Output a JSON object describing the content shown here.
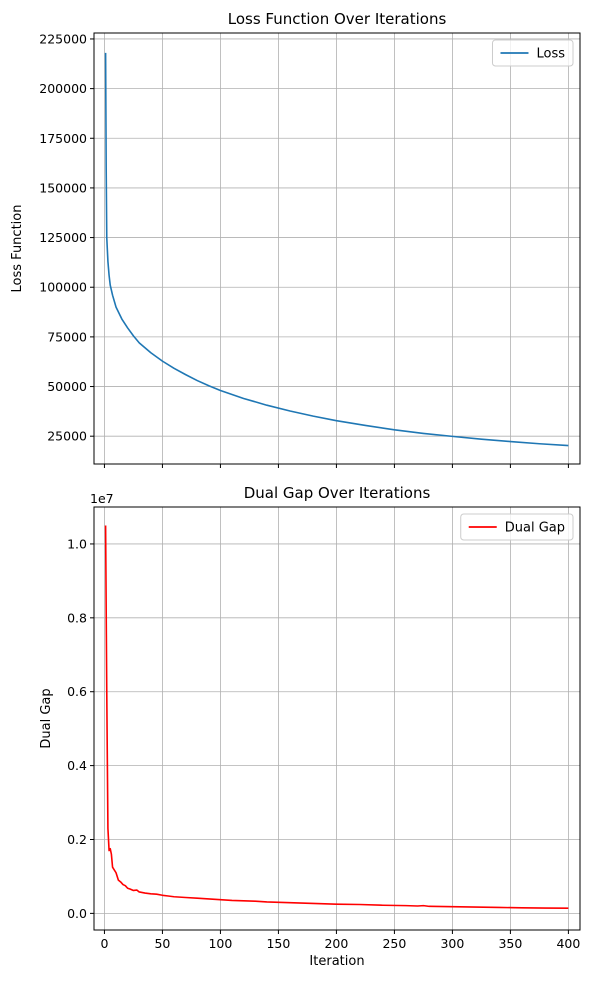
{
  "chart_data": [
    {
      "type": "line",
      "title": "Loss Function Over Iterations",
      "xlabel": "",
      "ylabel": "Loss Function",
      "xlim": [
        -9,
        410
      ],
      "ylim": [
        11000,
        228000
      ],
      "x_ticks": [
        0,
        50,
        100,
        150,
        200,
        250,
        300,
        350,
        400
      ],
      "x_tick_labels_visible": false,
      "y_ticks": [
        25000,
        50000,
        75000,
        100000,
        125000,
        150000,
        175000,
        200000,
        225000
      ],
      "y_tick_labels": [
        "25000",
        "50000",
        "75000",
        "100000",
        "125000",
        "150000",
        "175000",
        "200000",
        "225000"
      ],
      "grid": true,
      "legend": "top-right",
      "series": [
        {
          "name": "Loss",
          "color": "#1f77b4",
          "x": [
            1,
            1.5,
            2,
            3,
            4,
            5,
            7,
            10,
            15,
            20,
            25,
            30,
            40,
            50,
            60,
            70,
            80,
            90,
            100,
            120,
            140,
            160,
            180,
            200,
            225,
            250,
            275,
            300,
            325,
            350,
            375,
            400
          ],
          "y": [
            218000,
            160000,
            125000,
            113000,
            106000,
            101000,
            96000,
            90000,
            84000,
            79500,
            75500,
            72000,
            67000,
            62800,
            59200,
            56000,
            53000,
            50400,
            48000,
            44000,
            40600,
            37700,
            35100,
            32800,
            30400,
            28200,
            26400,
            24900,
            23500,
            22300,
            21200,
            20300
          ]
        }
      ]
    },
    {
      "type": "line",
      "title": "Dual Gap Over Iterations",
      "xlabel": "Iteration",
      "ylabel": "Dual Gap",
      "offset_text": "1e7",
      "xlim": [
        -9,
        410
      ],
      "ylim": [
        -0.045,
        1.1
      ],
      "x_ticks": [
        0,
        50,
        100,
        150,
        200,
        250,
        300,
        350,
        400
      ],
      "x_tick_labels": [
        "0",
        "50",
        "100",
        "150",
        "200",
        "250",
        "300",
        "350",
        "400"
      ],
      "y_ticks": [
        0.0,
        0.2,
        0.4,
        0.6,
        0.8,
        1.0
      ],
      "y_tick_labels": [
        "0.0",
        "0.2",
        "0.4",
        "0.6",
        "0.8",
        "1.0"
      ],
      "grid": true,
      "legend": "top-right",
      "series": [
        {
          "name": "Dual Gap",
          "color": "#ff0000",
          "x": [
            1,
            2,
            3,
            4,
            5,
            6,
            7,
            8,
            10,
            12,
            14,
            16,
            18,
            20,
            22,
            25,
            28,
            30,
            35,
            40,
            45,
            50,
            55,
            60,
            70,
            80,
            90,
            100,
            110,
            120,
            130,
            140,
            150,
            160,
            170,
            180,
            190,
            200,
            220,
            240,
            260,
            270,
            275,
            280,
            300,
            320,
            340,
            360,
            380,
            400
          ],
          "y": [
            1.05,
            0.6,
            0.23,
            0.17,
            0.175,
            0.16,
            0.125,
            0.12,
            0.11,
            0.09,
            0.085,
            0.078,
            0.075,
            0.068,
            0.066,
            0.062,
            0.063,
            0.058,
            0.055,
            0.053,
            0.052,
            0.049,
            0.047,
            0.045,
            0.043,
            0.041,
            0.039,
            0.037,
            0.035,
            0.034,
            0.033,
            0.031,
            0.03,
            0.029,
            0.028,
            0.027,
            0.026,
            0.025,
            0.024,
            0.022,
            0.021,
            0.02,
            0.021,
            0.019,
            0.018,
            0.017,
            0.016,
            0.015,
            0.0145,
            0.014
          ]
        }
      ]
    }
  ]
}
